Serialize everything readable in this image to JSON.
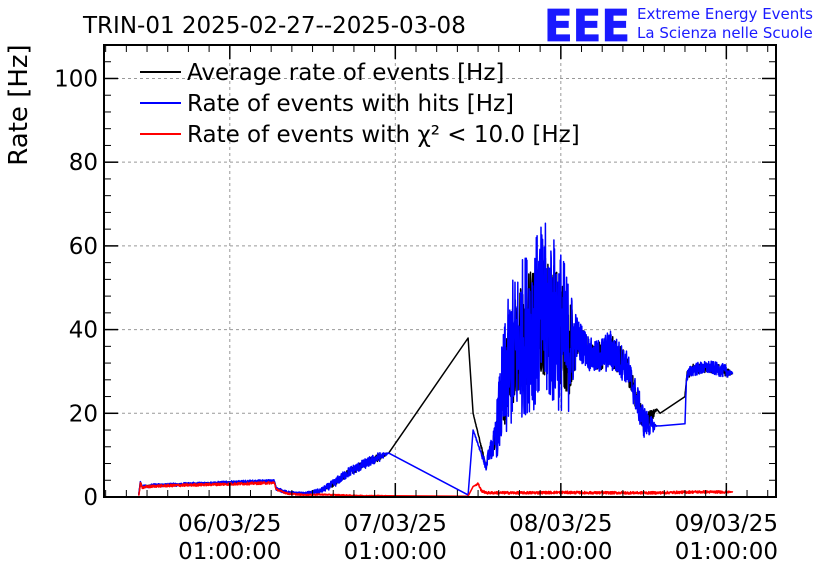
{
  "header": {
    "title": "TRIN-01 2025-02-27--2025-03-08",
    "logo_text": "EEE",
    "logo_line1": "Extreme Energy Events",
    "logo_line2": "La Scienza nelle Scuole"
  },
  "colors": {
    "average": "#000000",
    "hits": "#0000ff",
    "chi2": "#ff0000",
    "logo": "#1a1aff",
    "grid": "#999999"
  },
  "chart_data": {
    "type": "line",
    "title": "TRIN-01 2025-02-27--2025-03-08",
    "xlabel": "",
    "ylabel": "Rate [Hz]",
    "ylim": [
      0,
      108
    ],
    "xlim": [
      -0.76,
      3.3
    ],
    "grid": true,
    "legend_position": "top-left",
    "y_ticks": [
      {
        "value": 0,
        "label": "0"
      },
      {
        "value": 20,
        "label": "20"
      },
      {
        "value": 40,
        "label": "40"
      },
      {
        "value": 60,
        "label": "60"
      },
      {
        "value": 80,
        "label": "80"
      },
      {
        "value": 100,
        "label": "100"
      }
    ],
    "x_ticks": [
      {
        "value": 0,
        "date": "06/03/25",
        "time": "01:00:00"
      },
      {
        "value": 1,
        "date": "07/03/25",
        "time": "01:00:00"
      },
      {
        "value": 2,
        "date": "08/03/25",
        "time": "01:00:00"
      },
      {
        "value": 3,
        "date": "09/03/25",
        "time": "01:00:00"
      }
    ],
    "series": [
      {
        "name": "Average rate of events [Hz]",
        "key": "average",
        "x": [
          -0.55,
          -0.54,
          -0.53,
          -0.45,
          -0.3,
          -0.1,
          0.1,
          0.27,
          0.28,
          0.35,
          0.45,
          0.55,
          0.62,
          0.72,
          0.82,
          0.9,
          0.96,
          1.44,
          1.47,
          1.55,
          1.56,
          1.6,
          1.65,
          1.7,
          1.8,
          1.9,
          2.0,
          2.05,
          2.1,
          2.2,
          2.3,
          2.4,
          2.5,
          2.55,
          2.58,
          2.6,
          2.75,
          2.76,
          2.8,
          2.9,
          3.0,
          3.04
        ],
        "y": [
          0.5,
          3.5,
          2.5,
          2.8,
          3.0,
          3.3,
          3.6,
          3.8,
          2.0,
          1.0,
          0.8,
          1.5,
          3.0,
          6.0,
          8.0,
          9.5,
          10.5,
          38,
          20,
          7,
          10,
          13,
          25,
          34,
          40,
          44,
          40,
          36,
          38,
          33,
          35,
          31,
          18,
          19.5,
          21,
          20,
          24,
          29,
          30.5,
          31,
          30,
          29.5
        ],
        "noise": [
          0,
          0.2,
          0.2,
          0.2,
          0.2,
          0.2,
          0.2,
          0.2,
          0.2,
          0.2,
          0.2,
          0.3,
          0.6,
          0.8,
          0.9,
          0.9,
          0,
          0,
          0,
          0.5,
          0.5,
          3,
          9,
          12,
          14,
          15,
          14,
          12,
          4,
          3,
          4,
          3,
          3,
          1.5,
          0,
          0,
          0,
          0.8,
          1.2,
          1.2,
          1.2,
          0
        ]
      },
      {
        "name": "Rate of events with hits [Hz]",
        "key": "hits",
        "x": [
          -0.55,
          -0.54,
          -0.53,
          -0.45,
          -0.3,
          -0.1,
          0.1,
          0.27,
          0.28,
          0.35,
          0.45,
          0.55,
          0.62,
          0.72,
          0.82,
          0.9,
          0.96,
          1.44,
          1.47,
          1.55,
          1.56,
          1.6,
          1.65,
          1.7,
          1.8,
          1.9,
          2.0,
          2.05,
          2.1,
          2.2,
          2.3,
          2.4,
          2.5,
          2.55,
          2.58,
          2.6,
          2.75,
          2.76,
          2.8,
          2.9,
          3.0,
          3.04
        ],
        "y": [
          0.5,
          3.5,
          2.5,
          2.8,
          3.0,
          3.3,
          3.6,
          3.8,
          2.0,
          1.0,
          0.8,
          1.5,
          3.0,
          6.0,
          8.0,
          9.5,
          10.5,
          0.5,
          16,
          7,
          10,
          13,
          25,
          34,
          40,
          44,
          40,
          36,
          38,
          33,
          35,
          31,
          18,
          17,
          17,
          17,
          17.5,
          29,
          30.5,
          31,
          30,
          29.5
        ],
        "noise": [
          0,
          0.4,
          0.4,
          0.4,
          0.4,
          0.4,
          0.4,
          0.4,
          0.4,
          0.4,
          0.3,
          0.6,
          1.0,
          1.2,
          1.2,
          1.2,
          0,
          0,
          0,
          1,
          1,
          4,
          14,
          18,
          20,
          22,
          20,
          16,
          5,
          4,
          5,
          4,
          4,
          2,
          0,
          0,
          0,
          1.4,
          1.6,
          1.6,
          1.6,
          0
        ]
      },
      {
        "name": "Rate of events with χ² < 10.0 [Hz]",
        "key": "chi2",
        "x": [
          -0.55,
          -0.54,
          -0.53,
          -0.45,
          -0.3,
          -0.1,
          0.1,
          0.27,
          0.28,
          0.35,
          0.45,
          0.55,
          0.62,
          0.72,
          0.82,
          0.9,
          0.96,
          1.44,
          1.47,
          1.5,
          1.52,
          1.55,
          1.6,
          1.8,
          2.0,
          2.2,
          2.4,
          2.6,
          2.8,
          3.0,
          3.04
        ],
        "y": [
          0.3,
          3.2,
          2.3,
          2.6,
          2.8,
          3.0,
          3.2,
          3.4,
          1.8,
          0.8,
          0.5,
          0.6,
          0.5,
          0.4,
          0.3,
          0.3,
          0.3,
          0.2,
          2.5,
          3.2,
          1.5,
          1.0,
          1.0,
          1.0,
          1.1,
          1.0,
          1.0,
          1.0,
          1.2,
          1.2,
          1.2
        ],
        "noise": [
          0,
          0.3,
          0.3,
          0.3,
          0.3,
          0.3,
          0.3,
          0.3,
          0.2,
          0.2,
          0.15,
          0.15,
          0.15,
          0.1,
          0.1,
          0.1,
          0,
          0,
          0,
          0.3,
          0.3,
          0.3,
          0.3,
          0.3,
          0.3,
          0.3,
          0.3,
          0.3,
          0.3,
          0.3,
          0
        ]
      }
    ]
  }
}
